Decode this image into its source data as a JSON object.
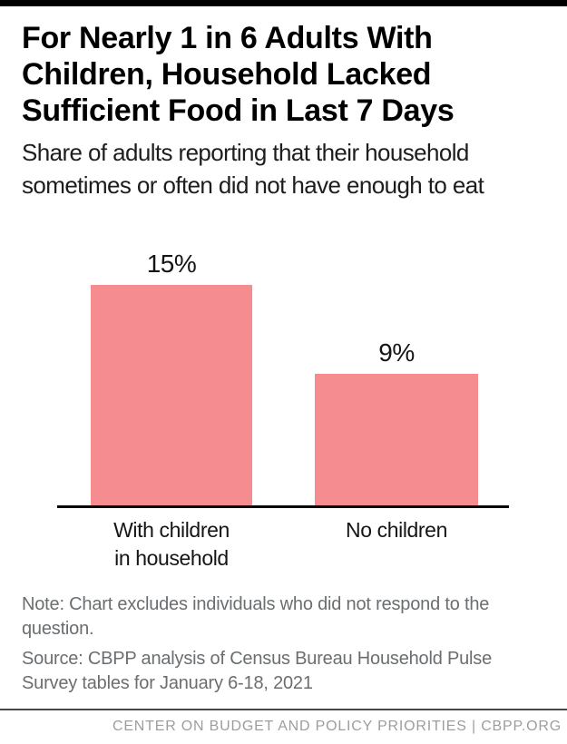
{
  "page": {
    "title_lines": [
      "For Nearly 1 in 6 Adults With",
      "Children, Household Lacked",
      "Sufficient Food in Last 7 Days"
    ],
    "subtitle_lines": [
      "Share of adults reporting that their household",
      "sometimes or often did not have enough to eat"
    ],
    "note_lines": [
      "Note: Chart excludes individuals who did not respond to the",
      "question."
    ],
    "source_lines": [
      "Source: CBPP analysis of Census Bureau Household Pulse",
      "Survey tables for January 6-18, 2021"
    ],
    "footer": "CENTER ON BUDGET AND POLICY PRIORITIES | CBPP.ORG"
  },
  "colors": {
    "bar": "#f58c90",
    "top_bar": "#000000",
    "axis": "#000000",
    "title_text": "#000000",
    "body_text": "#1d1d1d",
    "muted_text": "#6b6e70",
    "footer_text": "#9b9ea0",
    "divider": "#454749"
  },
  "chart_data": {
    "type": "bar",
    "title": "For Nearly 1 in 6 Adults With Children, Household Lacked Sufficient Food in Last 7 Days",
    "subtitle": "Share of adults reporting that their household sometimes or often did not have enough to eat",
    "categories": [
      "With children in household",
      "No children"
    ],
    "category_lines": [
      [
        "With children",
        "in household"
      ],
      [
        "No children"
      ]
    ],
    "values": [
      15,
      9
    ],
    "value_labels": [
      "15%",
      "9%"
    ],
    "unit": "%",
    "ylim": [
      0,
      17
    ],
    "grid": false,
    "legend": false,
    "bar_color": "#f58c90",
    "baseline_color": "#000000"
  }
}
